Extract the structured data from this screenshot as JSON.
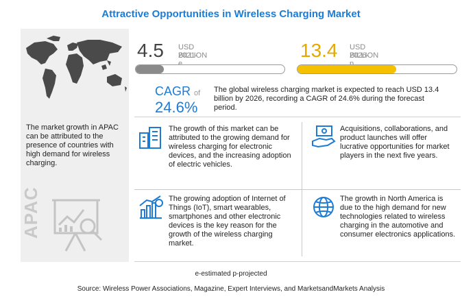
{
  "title": "Attractive Opportunities in Wireless Charging Market",
  "left_panel": {
    "note": "The market growth in APAC can be attributed to the presence of countries with high demand for wireless charging.",
    "label": "APAC"
  },
  "stats": [
    {
      "value": "4.5",
      "unit": "USD BILLION",
      "year": "2021-e",
      "fill_fraction": 0.19,
      "color": "#8a8a8a"
    },
    {
      "value": "13.4",
      "unit": "USD BILLION",
      "year": "2026-p",
      "fill_fraction": 0.62,
      "color": "#f5c000"
    }
  ],
  "cagr": {
    "label": "CAGR",
    "of": "of",
    "value": "24.6%",
    "text": "The global wireless charging market is expected to reach USD 13.4 billion by 2026, recording a CAGR of 24.6% during the forecast period."
  },
  "points": [
    {
      "icon": "building-chart-icon",
      "text": "The growth of this market can be attributed to the growing demand for wireless charging for electronic devices, and the increasing adoption of electric vehicles."
    },
    {
      "icon": "money-hand-icon",
      "text": "Acquisitions, collaborations, and product launches will offer lucrative opportunities for market players in the next five years."
    },
    {
      "icon": "growth-chart-icon",
      "text": "The growing adoption of Internet of Things (IoT), smart wearables, smartphones and other electronic devices is the key reason for the growth of the wireless charging market."
    },
    {
      "icon": "globe-icon",
      "text": "The growth in North America is due to the high demand for new technologies related to wireless charging in the automotive and consumer electronics applications."
    }
  ],
  "footnote": "e-estimated p-projected",
  "source": "Source: Wireless Power Associations, Magazine, Expert Interviews, and MarketsandMarkets Analysis"
}
